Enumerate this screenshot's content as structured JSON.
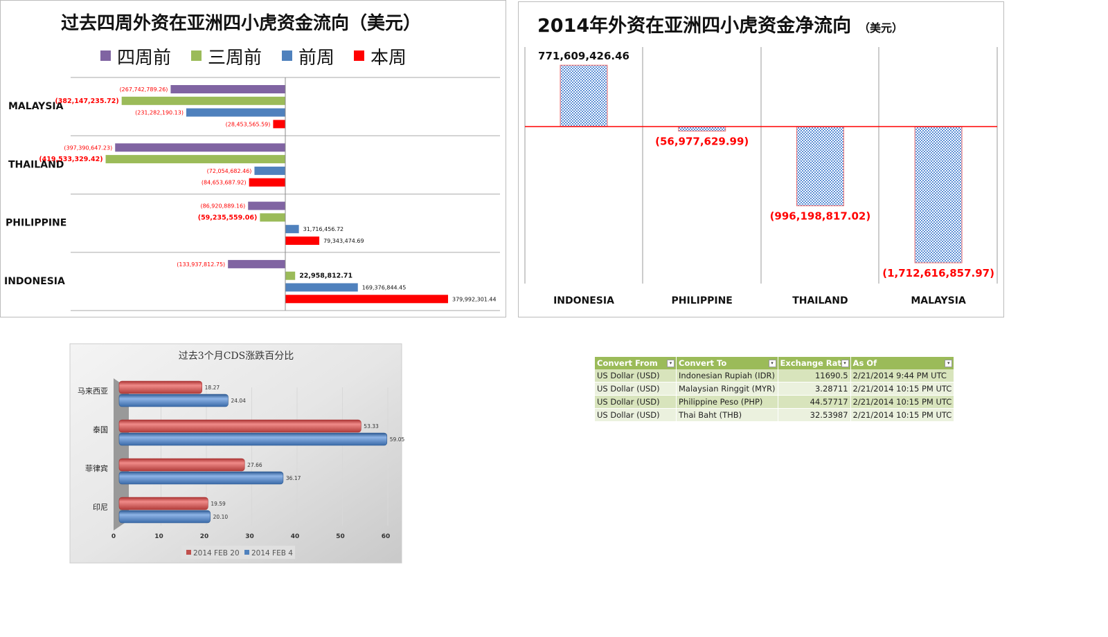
{
  "chart_data": [
    {
      "type": "bar",
      "orientation": "horizontal",
      "title": "过去四周外资在亚洲四小虎资金流向（美元）",
      "categories": [
        "MALAYSIA",
        "THAILAND",
        "PHILIPPINE",
        "INDONESIA"
      ],
      "legend_position": "top",
      "series": [
        {
          "name": "四周前",
          "color": "#8064a2",
          "values": [
            -267742789.26,
            -397390647.23,
            -86920889.16,
            -133937812.75
          ],
          "labels": [
            "(267,742,789.26)",
            "(397,390,647.23)",
            "(86,920,889.16)",
            "(133,937,812.75)"
          ]
        },
        {
          "name": "三周前",
          "color": "#9bbb59",
          "values": [
            -382147235.72,
            -419533329.42,
            -59235559.06,
            22958812.71
          ],
          "labels": [
            "(382,147,235.72)",
            "(419,533,329.42)",
            "(59,235,559.06)",
            "22,958,812.71"
          ]
        },
        {
          "name": "前周",
          "color": "#4f81bd",
          "values": [
            -231282190.13,
            -72054682.46,
            31716456.72,
            169376844.45
          ],
          "labels": [
            "(231,282,190.13)",
            "(72,054,682.46)",
            "31,716,456.72",
            "169,376,844.45"
          ]
        },
        {
          "name": "本周",
          "color": "#ff0000",
          "values": [
            -28453565.59,
            -84653687.92,
            79343474.69,
            379992301.44
          ],
          "labels": [
            "(28,453,565.59)",
            "(84,653,687.92)",
            "79,343,474.69",
            "379,992,301.44"
          ]
        }
      ]
    },
    {
      "type": "bar",
      "title": "2014年外资在亚洲四小虎资金净流向",
      "subtitle": "（美元）",
      "categories": [
        "INDONESIA",
        "PHILIPPINE",
        "THAILAND",
        "MALAYSIA"
      ],
      "values": [
        771609426.46,
        -56977629.99,
        -996198817.02,
        -1712616857.97
      ],
      "labels": [
        "771,609,426.46",
        "(56,977,629.99)",
        "(996,198,817.02)",
        "(1,712,616,857.97)"
      ],
      "fill": "checkered blue"
    },
    {
      "type": "bar",
      "orientation": "horizontal",
      "style": "3d-cylinder",
      "title": "过去3个月CDS涨跌百分比",
      "categories": [
        "马来西亚",
        "泰国",
        "菲律宾",
        "印尼"
      ],
      "xlim": [
        0,
        60
      ],
      "xticks": [
        "0",
        "10",
        "20",
        "30",
        "40",
        "50",
        "60"
      ],
      "legend_position": "bottom",
      "series": [
        {
          "name": "2014 FEB 20",
          "color": "#c0504d",
          "values": [
            18.27,
            53.33,
            27.66,
            19.59
          ],
          "labels": [
            "18.27",
            "53.33",
            "27.66",
            "19.59"
          ]
        },
        {
          "name": "2014 FEB 4",
          "color": "#4f81bd",
          "values": [
            24.04,
            59.05,
            36.17,
            20.1
          ],
          "labels": [
            "24.04",
            "59.05",
            "36.17",
            "20.10"
          ]
        }
      ]
    }
  ],
  "table": {
    "headers": [
      "Convert From",
      "Convert To",
      "Exchange Rate",
      "As Of"
    ],
    "rows": [
      [
        "US Dollar (USD)",
        "Indonesian Rupiah (IDR)",
        "11690.5",
        "2/21/2014 9:44 PM UTC"
      ],
      [
        "US Dollar (USD)",
        "Malaysian Ringgit (MYR)",
        "3.28711",
        "2/21/2014 10:15 PM UTC"
      ],
      [
        "US Dollar (USD)",
        "Philippine Peso (PHP)",
        "44.57717",
        "2/21/2014 10:15 PM UTC"
      ],
      [
        "US Dollar (USD)",
        "Thai Baht (THB)",
        "32.53987",
        "2/21/2014 10:15 PM UTC"
      ]
    ]
  }
}
